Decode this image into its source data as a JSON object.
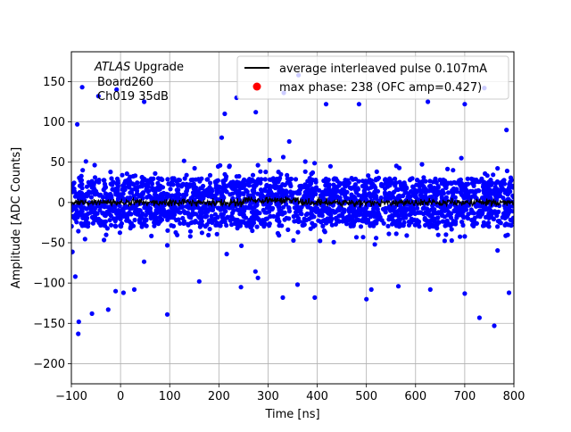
{
  "chart_data": {
    "type": "scatter",
    "xlabel": "Time [ns]",
    "ylabel": "Amplitude [ADC Counts]",
    "xlim": [
      -100,
      800
    ],
    "ylim": [
      -225,
      187
    ],
    "grid": true,
    "legend_placement": "top-right",
    "x_ticks": [
      -100,
      0,
      100,
      200,
      300,
      400,
      500,
      600,
      700,
      800
    ],
    "y_ticks": [
      -200,
      -150,
      -100,
      -50,
      0,
      50,
      100,
      150
    ],
    "annotation": {
      "line1_italic": "ATLAS",
      "line1_rest": " Upgrade",
      "line2": "Board260",
      "line3": "Ch019 35dB"
    },
    "series": [
      {
        "name": "average interleaved pulse 0.107mA",
        "kind": "line",
        "color": "#000000",
        "x_range": [
          -100,
          800
        ],
        "level": 0,
        "noise": 3
      },
      {
        "name": "max phase: 238 (OFC amp=0.427)",
        "kind": "scatter",
        "color": "#0000ff",
        "legend_marker_color": "#ff0000",
        "x_range": [
          -100,
          800
        ],
        "core_band": [
          -30,
          30
        ],
        "outliers": [
          {
            "x": -88,
            "y": 97
          },
          {
            "x": -78,
            "y": 143
          },
          {
            "x": -45,
            "y": 132
          },
          {
            "x": -8,
            "y": 140
          },
          {
            "x": 48,
            "y": 125
          },
          {
            "x": 212,
            "y": 110
          },
          {
            "x": 236,
            "y": 130
          },
          {
            "x": 275,
            "y": 112
          },
          {
            "x": 332,
            "y": 136
          },
          {
            "x": 362,
            "y": 158
          },
          {
            "x": 418,
            "y": 122
          },
          {
            "x": 485,
            "y": 122
          },
          {
            "x": 625,
            "y": 125
          },
          {
            "x": 700,
            "y": 122
          },
          {
            "x": 740,
            "y": 142
          },
          {
            "x": 785,
            "y": 90
          },
          {
            "x": -92,
            "y": -92
          },
          {
            "x": -86,
            "y": -163
          },
          {
            "x": -85,
            "y": -148
          },
          {
            "x": -58,
            "y": -138
          },
          {
            "x": -25,
            "y": -133
          },
          {
            "x": -10,
            "y": -110
          },
          {
            "x": 6,
            "y": -112
          },
          {
            "x": 28,
            "y": -108
          },
          {
            "x": 95,
            "y": -139
          },
          {
            "x": 160,
            "y": -98
          },
          {
            "x": 245,
            "y": -105
          },
          {
            "x": 330,
            "y": -118
          },
          {
            "x": 360,
            "y": -102
          },
          {
            "x": 395,
            "y": -118
          },
          {
            "x": 500,
            "y": -120
          },
          {
            "x": 510,
            "y": -108
          },
          {
            "x": 565,
            "y": -104
          },
          {
            "x": 630,
            "y": -108
          },
          {
            "x": 700,
            "y": -113
          },
          {
            "x": 730,
            "y": -143
          },
          {
            "x": 760,
            "y": -153
          },
          {
            "x": 790,
            "y": -112
          }
        ]
      }
    ]
  }
}
